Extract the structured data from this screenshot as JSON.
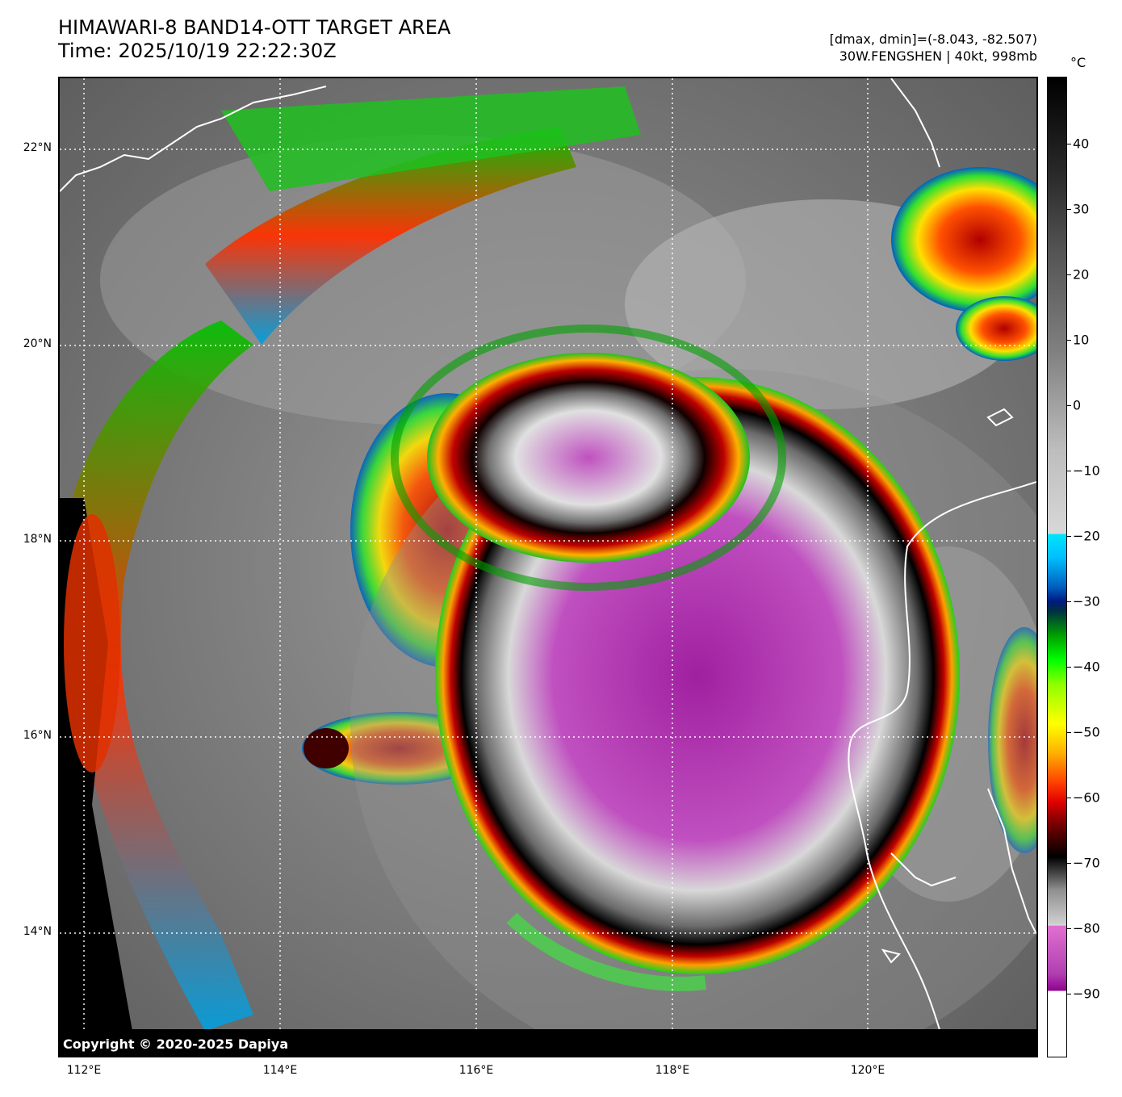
{
  "header": {
    "title": "HIMAWARI-8 BAND14-OTT TARGET AREA",
    "time": "Time: 2025/10/19 22:22:30Z",
    "range_text": "[dmax, dmin]=(-8.043, -82.507)",
    "storm_text": "30W.FENGSHEN | 40kt, 998mb"
  },
  "map": {
    "lat_labels": [
      "22°N",
      "20°N",
      "18°N",
      "16°N",
      "14°N"
    ],
    "lon_labels": [
      "112°E",
      "114°E",
      "116°E",
      "118°E",
      "120°E"
    ],
    "copyright": "Copyright © 2020-2025 Dapiya"
  },
  "colorbar": {
    "unit": "°C",
    "ticks": [
      "40",
      "30",
      "20",
      "10",
      "0",
      "−10",
      "−20",
      "−30",
      "−40",
      "−50",
      "−60",
      "−70",
      "−80",
      "−90"
    ]
  }
}
